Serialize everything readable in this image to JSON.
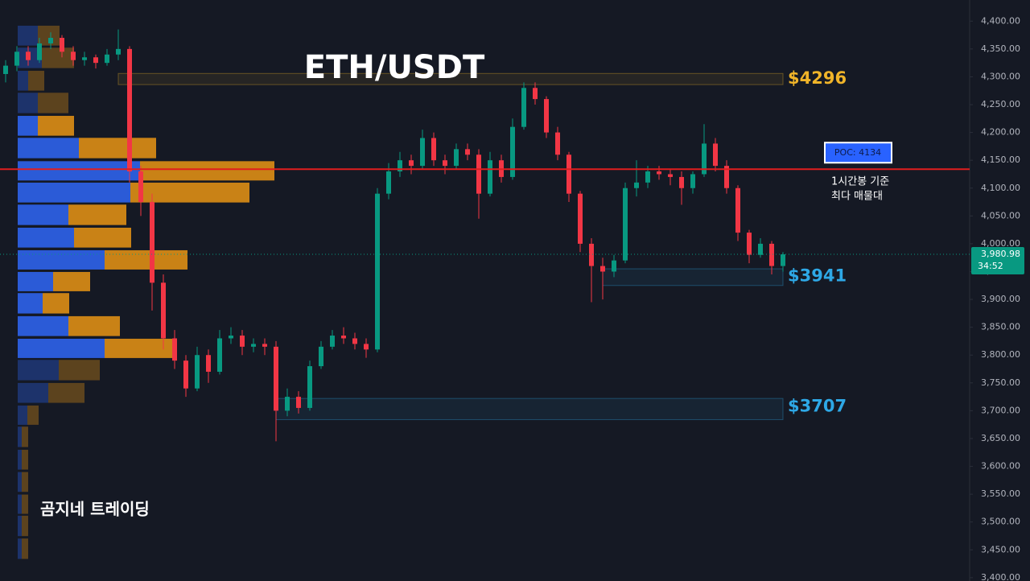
{
  "chart_data": {
    "type": "candlestick",
    "title": "ETH/USDT",
    "watermark": "곰지네 트레이딩",
    "ylim": [
      3394,
      4438
    ],
    "yticks": [
      {
        "value": 3400,
        "label": "3,400.00"
      },
      {
        "value": 3450,
        "label": "3,450.00"
      },
      {
        "value": 3500,
        "label": "3,500.00"
      },
      {
        "value": 3550,
        "label": "3,550.00"
      },
      {
        "value": 3600,
        "label": "3,600.00"
      },
      {
        "value": 3650,
        "label": "3,650.00"
      },
      {
        "value": 3700,
        "label": "3,700.00"
      },
      {
        "value": 3750,
        "label": "3,750.00"
      },
      {
        "value": 3800,
        "label": "3,800.00"
      },
      {
        "value": 3850,
        "label": "3,850.00"
      },
      {
        "value": 3900,
        "label": "3,900.00"
      },
      {
        "value": 3950,
        "label": "3,950.00"
      },
      {
        "value": 4000,
        "label": "4,000.00"
      },
      {
        "value": 4050,
        "label": "4,050.00"
      },
      {
        "value": 4100,
        "label": "4,100.00"
      },
      {
        "value": 4150,
        "label": "4,150.00"
      },
      {
        "value": 4200,
        "label": "4,200.00"
      },
      {
        "value": 4250,
        "label": "4,250.00"
      },
      {
        "value": 4300,
        "label": "4,300.00"
      },
      {
        "value": 4350,
        "label": "4,350.00"
      },
      {
        "value": 4400,
        "label": "4,400.00"
      }
    ],
    "up_color": "#089981",
    "down_color": "#f23645",
    "ohlc": [
      [
        4305,
        4330,
        4290,
        4320
      ],
      [
        4320,
        4355,
        4310,
        4345
      ],
      [
        4345,
        4355,
        4320,
        4330
      ],
      [
        4330,
        4370,
        4325,
        4360
      ],
      [
        4360,
        4380,
        4350,
        4370
      ],
      [
        4370,
        4375,
        4335,
        4345
      ],
      [
        4345,
        4355,
        4320,
        4330
      ],
      [
        4330,
        4345,
        4320,
        4335
      ],
      [
        4335,
        4340,
        4315,
        4325
      ],
      [
        4325,
        4350,
        4320,
        4340
      ],
      [
        4340,
        4385,
        4330,
        4350
      ],
      [
        4350,
        4355,
        4110,
        4130
      ],
      [
        4130,
        4140,
        4050,
        4075
      ],
      [
        4075,
        4090,
        3880,
        3930
      ],
      [
        3930,
        3945,
        3810,
        3830
      ],
      [
        3830,
        3845,
        3775,
        3790
      ],
      [
        3790,
        3800,
        3725,
        3740
      ],
      [
        3740,
        3815,
        3735,
        3800
      ],
      [
        3800,
        3810,
        3750,
        3770
      ],
      [
        3770,
        3845,
        3765,
        3830
      ],
      [
        3830,
        3850,
        3820,
        3835
      ],
      [
        3835,
        3845,
        3800,
        3815
      ],
      [
        3815,
        3830,
        3805,
        3820
      ],
      [
        3820,
        3830,
        3800,
        3815
      ],
      [
        3815,
        3825,
        3645,
        3700
      ],
      [
        3700,
        3740,
        3690,
        3725
      ],
      [
        3725,
        3735,
        3695,
        3705
      ],
      [
        3705,
        3790,
        3700,
        3780
      ],
      [
        3780,
        3825,
        3775,
        3815
      ],
      [
        3815,
        3845,
        3810,
        3835
      ],
      [
        3835,
        3850,
        3820,
        3830
      ],
      [
        3830,
        3840,
        3810,
        3820
      ],
      [
        3820,
        3830,
        3795,
        3810
      ],
      [
        3810,
        4100,
        3805,
        4090
      ],
      [
        4090,
        4145,
        4080,
        4130
      ],
      [
        4130,
        4165,
        4120,
        4150
      ],
      [
        4150,
        4160,
        4125,
        4140
      ],
      [
        4140,
        4205,
        4135,
        4190
      ],
      [
        4190,
        4200,
        4140,
        4150
      ],
      [
        4150,
        4160,
        4125,
        4140
      ],
      [
        4140,
        4180,
        4135,
        4170
      ],
      [
        4170,
        4180,
        4150,
        4160
      ],
      [
        4160,
        4170,
        4045,
        4090
      ],
      [
        4090,
        4165,
        4085,
        4150
      ],
      [
        4150,
        4160,
        4110,
        4120
      ],
      [
        4120,
        4225,
        4115,
        4210
      ],
      [
        4210,
        4290,
        4205,
        4280
      ],
      [
        4280,
        4290,
        4250,
        4260
      ],
      [
        4260,
        4265,
        4190,
        4200
      ],
      [
        4200,
        4210,
        4150,
        4160
      ],
      [
        4160,
        4165,
        4075,
        4090
      ],
      [
        4090,
        4095,
        3985,
        4000
      ],
      [
        4000,
        4010,
        3895,
        3960
      ],
      [
        3960,
        3975,
        3900,
        3950
      ],
      [
        3950,
        3980,
        3940,
        3970
      ],
      [
        3970,
        4110,
        3965,
        4100
      ],
      [
        4100,
        4150,
        4085,
        4110
      ],
      [
        4110,
        4140,
        4100,
        4130
      ],
      [
        4130,
        4140,
        4115,
        4125
      ],
      [
        4125,
        4135,
        4105,
        4120
      ],
      [
        4120,
        4130,
        4070,
        4100
      ],
      [
        4100,
        4130,
        4090,
        4125
      ],
      [
        4125,
        4215,
        4120,
        4180
      ],
      [
        4180,
        4190,
        4130,
        4140
      ],
      [
        4140,
        4150,
        4090,
        4100
      ],
      [
        4100,
        4105,
        4005,
        4020
      ],
      [
        4020,
        4025,
        3965,
        3980
      ],
      [
        3980,
        4010,
        3975,
        4000
      ],
      [
        4000,
        4005,
        3945,
        3960
      ],
      [
        3960,
        3985,
        3950,
        3980.98
      ]
    ],
    "volume_profile": {
      "buy_color": "#2b5bd7",
      "sell_color": "#c98216",
      "value_area": [
        3790,
        4235
      ],
      "prices": [
        4374,
        4334,
        4293,
        4253,
        4212,
        4172,
        4131,
        4092,
        4052,
        4011,
        3971,
        3932,
        3893,
        3852,
        3812,
        3773,
        3732,
        3692,
        3653,
        3612,
        3572,
        3532,
        3493,
        3452
      ],
      "buy": [
        25,
        30,
        13,
        25,
        25,
        76,
        152,
        140,
        63,
        70,
        108,
        44,
        31,
        63,
        108,
        51,
        38,
        12,
        5,
        5,
        5,
        5,
        5,
        5
      ],
      "sell": [
        27,
        40,
        20,
        38,
        45,
        96,
        167,
        148,
        72,
        71,
        103,
        46,
        33,
        64,
        90,
        51,
        45,
        14,
        8,
        8,
        8,
        8,
        8,
        8
      ]
    },
    "zones": [
      {
        "label": "$4296",
        "value": 4296,
        "top": 4306,
        "bottom": 4286,
        "start_index": 10,
        "color": "#f0b429"
      },
      {
        "label": "$3941",
        "value": 3941,
        "top": 3955,
        "bottom": 3925,
        "start_index": 53,
        "color": "#2ea8e6"
      },
      {
        "label": "$3707",
        "value": 3707,
        "top": 3722,
        "bottom": 3684,
        "start_index": 24,
        "color": "#2ea8e6"
      }
    ],
    "poc": {
      "value": 4134,
      "label": "POC: 4134",
      "note": [
        "1시간봉 기준",
        "최다 매물대"
      ],
      "color": "#e01e1e"
    },
    "last_price": {
      "value": 3980.98,
      "label": "3,980.98",
      "countdown": "34:52"
    }
  }
}
